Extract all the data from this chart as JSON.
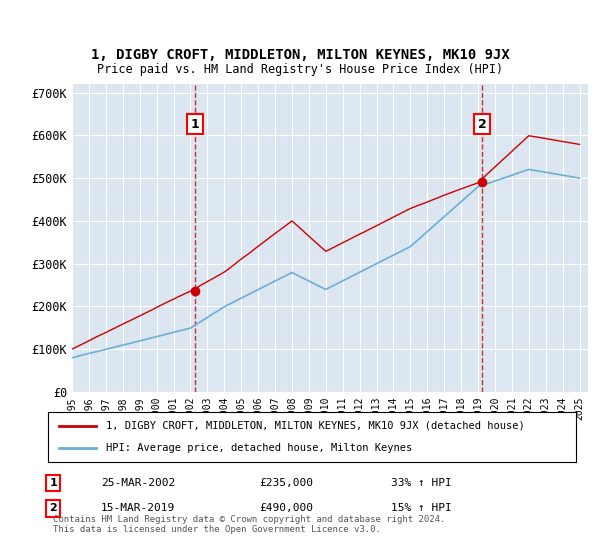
{
  "title": "1, DIGBY CROFT, MIDDLETON, MILTON KEYNES, MK10 9JX",
  "subtitle": "Price paid vs. HM Land Registry's House Price Index (HPI)",
  "background_color": "#dce6f0",
  "plot_bg_color": "#dce6f0",
  "outer_bg_color": "#ffffff",
  "sale1_date": "25-MAR-2002",
  "sale1_price": 235000,
  "sale1_label": "33% ↑ HPI",
  "sale2_date": "15-MAR-2019",
  "sale2_price": 490000,
  "sale2_label": "15% ↑ HPI",
  "hpi_line_color": "#6baed6",
  "price_line_color": "#cc0000",
  "dashed_line_color": "#cc0000",
  "legend_label_price": "1, DIGBY CROFT, MIDDLETON, MILTON KEYNES, MK10 9JX (detached house)",
  "legend_label_hpi": "HPI: Average price, detached house, Milton Keynes",
  "footer": "Contains HM Land Registry data © Crown copyright and database right 2024.\nThis data is licensed under the Open Government Licence v3.0.",
  "ylim": [
    0,
    720000
  ],
  "yticks": [
    0,
    100000,
    200000,
    300000,
    400000,
    500000,
    600000,
    700000
  ],
  "ytick_labels": [
    "£0",
    "£100K",
    "£200K",
    "£300K",
    "£400K",
    "£500K",
    "£600K",
    "£700K"
  ]
}
